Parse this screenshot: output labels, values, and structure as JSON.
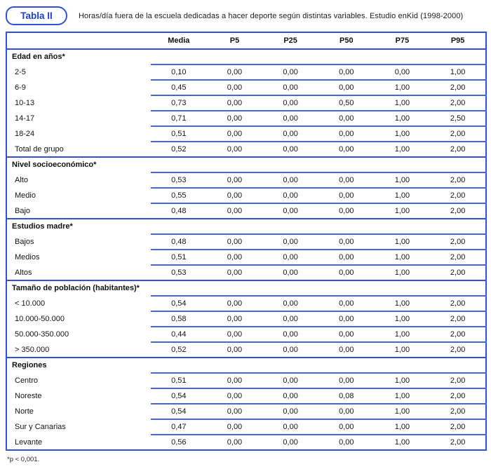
{
  "header": {
    "badge": "Tabla II",
    "title": "Horas/día fuera de la escuela dedicadas a hacer deporte según distintas variables. Estudio enKid (1998-2000)"
  },
  "colors": {
    "accent_border": "#2d52df",
    "row_line": "#4366e2",
    "badge_text": "#1d40d8",
    "text": "#141414"
  },
  "table": {
    "columns": [
      "Media",
      "P5",
      "P25",
      "P50",
      "P75",
      "P95"
    ],
    "sections": [
      {
        "label": "Edad en años*",
        "rows": [
          {
            "label": "2-5",
            "values": [
              "0,10",
              "0,00",
              "0,00",
              "0,00",
              "0,00",
              "1,00"
            ]
          },
          {
            "label": "6-9",
            "values": [
              "0,45",
              "0,00",
              "0,00",
              "0,00",
              "1,00",
              "2,00"
            ]
          },
          {
            "label": "10-13",
            "values": [
              "0,73",
              "0,00",
              "0,00",
              "0,50",
              "1,00",
              "2,00"
            ]
          },
          {
            "label": "14-17",
            "values": [
              "0,71",
              "0,00",
              "0,00",
              "0,00",
              "1,00",
              "2,50"
            ]
          },
          {
            "label": "18-24",
            "values": [
              "0,51",
              "0,00",
              "0,00",
              "0,00",
              "1,00",
              "2,00"
            ]
          },
          {
            "label": "Total de grupo",
            "values": [
              "0,52",
              "0,00",
              "0,00",
              "0,00",
              "1,00",
              "2,00"
            ]
          }
        ]
      },
      {
        "label": "Nivel socioeconómico*",
        "rows": [
          {
            "label": "Alto",
            "values": [
              "0,53",
              "0,00",
              "0,00",
              "0,00",
              "1,00",
              "2,00"
            ]
          },
          {
            "label": "Medio",
            "values": [
              "0,55",
              "0,00",
              "0,00",
              "0,00",
              "1,00",
              "2,00"
            ]
          },
          {
            "label": "Bajo",
            "values": [
              "0,48",
              "0,00",
              "0,00",
              "0,00",
              "1,00",
              "2,00"
            ]
          }
        ]
      },
      {
        "label": "Estudios madre*",
        "rows": [
          {
            "label": "Bajos",
            "values": [
              "0,48",
              "0,00",
              "0,00",
              "0,00",
              "1,00",
              "2,00"
            ]
          },
          {
            "label": "Medios",
            "values": [
              "0,51",
              "0,00",
              "0,00",
              "0,00",
              "1,00",
              "2,00"
            ]
          },
          {
            "label": "Altos",
            "values": [
              "0,53",
              "0,00",
              "0,00",
              "0,00",
              "1,00",
              "2,00"
            ]
          }
        ]
      },
      {
        "label": "Tamaño de población (habitantes)*",
        "rows": [
          {
            "label": "< 10.000",
            "values": [
              "0,54",
              "0,00",
              "0,00",
              "0,00",
              "1,00",
              "2,00"
            ]
          },
          {
            "label": "10.000-50.000",
            "values": [
              "0,58",
              "0,00",
              "0,00",
              "0,00",
              "1,00",
              "2,00"
            ]
          },
          {
            "label": "50.000-350.000",
            "values": [
              "0,44",
              "0,00",
              "0,00",
              "0,00",
              "1,00",
              "2,00"
            ]
          },
          {
            "label": "> 350.000",
            "values": [
              "0,52",
              "0,00",
              "0,00",
              "0,00",
              "1,00",
              "2,00"
            ]
          }
        ]
      },
      {
        "label": "Regiones",
        "rows": [
          {
            "label": "Centro",
            "values": [
              "0,51",
              "0,00",
              "0,00",
              "0,00",
              "1,00",
              "2,00"
            ]
          },
          {
            "label": "Noreste",
            "values": [
              "0,54",
              "0,00",
              "0,00",
              "0,08",
              "1,00",
              "2,00"
            ]
          },
          {
            "label": "Norte",
            "values": [
              "0,54",
              "0,00",
              "0,00",
              "0,00",
              "1,00",
              "2,00"
            ]
          },
          {
            "label": "Sur y Canarias",
            "values": [
              "0,47",
              "0,00",
              "0,00",
              "0,00",
              "1,00",
              "2,00"
            ]
          },
          {
            "label": "Levante",
            "values": [
              "0,56",
              "0,00",
              "0,00",
              "0,00",
              "1,00",
              "2,00"
            ]
          }
        ]
      }
    ]
  },
  "footnote": "*p < 0,001."
}
